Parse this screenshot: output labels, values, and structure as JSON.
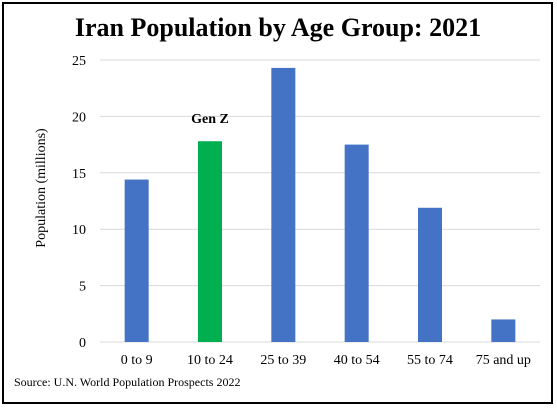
{
  "chart_data": {
    "type": "bar",
    "title": "Iran Population by Age Group: 2021",
    "ylabel": "Population  (millions)",
    "xlabel": "",
    "categories": [
      "0 to 9",
      "10 to 24",
      "25 to 39",
      "40 to 54",
      "55 to 74",
      "75 and up"
    ],
    "values": [
      14.4,
      17.8,
      24.3,
      17.5,
      11.9,
      2.0
    ],
    "highlight_index": 1,
    "ylim": [
      0,
      25
    ],
    "yticks": [
      "0",
      "5",
      "10",
      "15",
      "20",
      "25"
    ],
    "ytick_values": [
      0,
      5,
      10,
      15,
      20,
      25
    ],
    "grid": true,
    "annotation": "Gen Z",
    "source": "Source: U.N. World Population Prospects 2022",
    "colors": {
      "bar": "#4472C4",
      "highlight": "#00B050"
    }
  }
}
